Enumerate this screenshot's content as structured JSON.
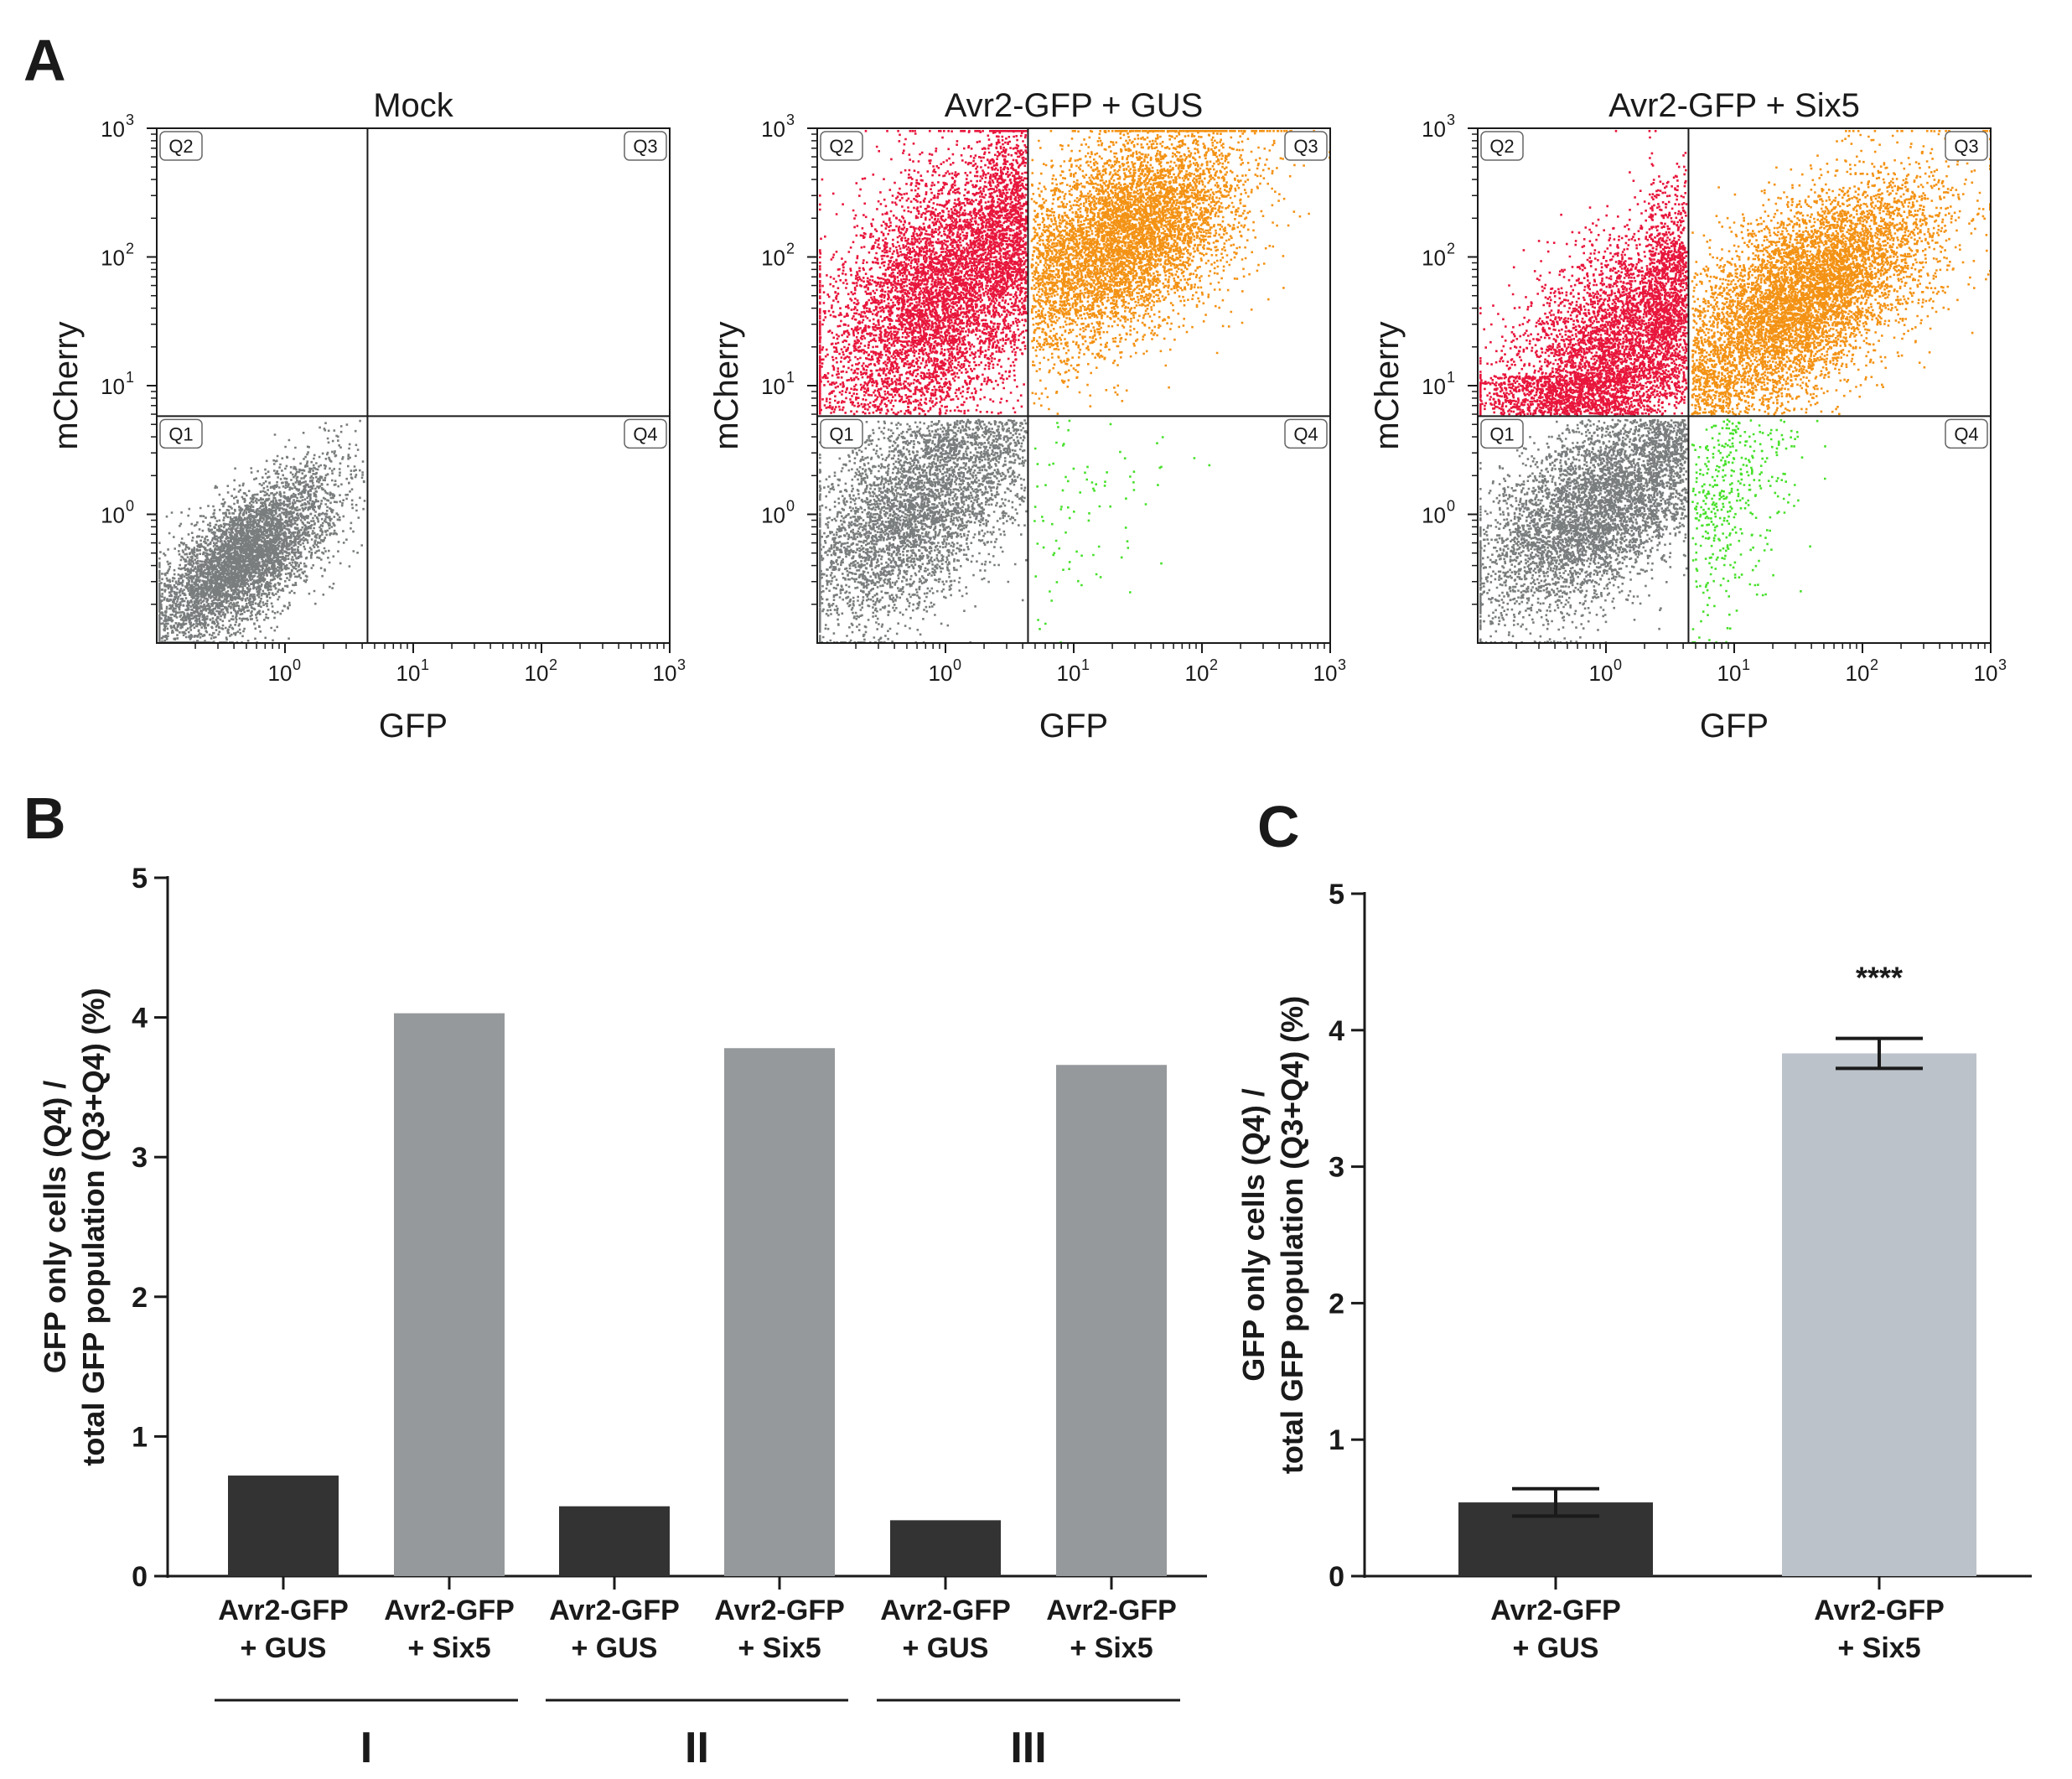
{
  "panels": {
    "a": {
      "letter": "A"
    },
    "b": {
      "letter": "B"
    },
    "c": {
      "letter": "C"
    }
  },
  "colors": {
    "q1_gray": "#7a7d7d",
    "q2_red": "#e8163c",
    "q3_orange": "#f39214",
    "q4_green": "#47e02a",
    "dark_bar": "#333333",
    "gray_bar": "#96999c",
    "light_bar": "#bbc2c9",
    "axis": "#1a1a1a"
  },
  "chart_data": [
    {
      "type": "scatter",
      "title": "Mock",
      "xlabel": "GFP",
      "ylabel": "mCherry",
      "scale": "log",
      "tick_labels": [
        "10",
        "10",
        "10",
        "10"
      ],
      "tick_exponents": [
        "0",
        "1",
        "2",
        "3"
      ],
      "quadrant_labels": [
        "Q1",
        "Q2",
        "Q3",
        "Q4"
      ],
      "gate_x": 4.4,
      "gate_y": 5.8,
      "populations": [
        {
          "quadrant": "Q1",
          "color": "#7a7d7d",
          "n": 5200,
          "cx": 0.45,
          "cy": 0.45,
          "sx": 0.36,
          "sy": 0.34,
          "rho": 0.7
        }
      ]
    },
    {
      "type": "scatter",
      "title": "Avr2-GFP + GUS",
      "xlabel": "GFP",
      "ylabel": "mCherry",
      "scale": "log",
      "tick_labels": [
        "10",
        "10",
        "10",
        "10"
      ],
      "tick_exponents": [
        "0",
        "1",
        "2",
        "3"
      ],
      "quadrant_labels": [
        "Q1",
        "Q2",
        "Q3",
        "Q4"
      ],
      "gate_x": 4.4,
      "gate_y": 5.8,
      "populations": [
        {
          "quadrant": "Q1",
          "color": "#7a7d7d",
          "n": 4200,
          "cx": 0.55,
          "cy": 1.1,
          "sx": 0.45,
          "sy": 0.45,
          "rho": 0.55
        },
        {
          "quadrant": "Q2",
          "color": "#e8163c",
          "n": 6500,
          "cx": 1.0,
          "cy": 60,
          "sx": 0.5,
          "sy": 0.55,
          "rho": 0.5
        },
        {
          "quadrant": "Q3",
          "color": "#f39214",
          "n": 6000,
          "cx": 25,
          "cy": 150,
          "sx": 0.45,
          "sy": 0.42,
          "rho": 0.45
        },
        {
          "quadrant": "Q4",
          "color": "#47e02a",
          "n": 90,
          "cx": 12,
          "cy": 1.2,
          "sx": 0.35,
          "sy": 0.4,
          "rho": 0.3
        }
      ]
    },
    {
      "type": "scatter",
      "title": "Avr2-GFP + Six5",
      "xlabel": "GFP",
      "ylabel": "mCherry",
      "scale": "log",
      "tick_labels": [
        "10",
        "10",
        "10",
        "10"
      ],
      "tick_exponents": [
        "0",
        "1",
        "2",
        "3"
      ],
      "quadrant_labels": [
        "Q1",
        "Q2",
        "Q3",
        "Q4"
      ],
      "gate_x": 4.4,
      "gate_y": 5.8,
      "populations": [
        {
          "quadrant": "Q1",
          "color": "#7a7d7d",
          "n": 4800,
          "cx": 0.8,
          "cy": 1.1,
          "sx": 0.45,
          "sy": 0.4,
          "rho": 0.55
        },
        {
          "quadrant": "Q2",
          "color": "#e8163c",
          "n": 5200,
          "cx": 1.2,
          "cy": 20,
          "sx": 0.48,
          "sy": 0.5,
          "rho": 0.55
        },
        {
          "quadrant": "Q3",
          "color": "#f39214",
          "n": 6800,
          "cx": 35,
          "cy": 50,
          "sx": 0.5,
          "sy": 0.45,
          "rho": 0.6
        },
        {
          "quadrant": "Q4",
          "color": "#47e02a",
          "n": 420,
          "cx": 8,
          "cy": 1.3,
          "sx": 0.3,
          "sy": 0.42,
          "rho": 0.3
        }
      ]
    },
    {
      "type": "bar",
      "ylabel_line1": "GFP only cells (Q4) /",
      "ylabel_line2": "total GFP population (Q3+Q4) (%)",
      "ylim": [
        0,
        5
      ],
      "yticks": [
        "0",
        "1",
        "2",
        "3",
        "4",
        "5"
      ],
      "categories": [
        {
          "line1": "Avr2-GFP",
          "line2": "+ GUS"
        },
        {
          "line1": "Avr2-GFP",
          "line2": "+ Six5"
        },
        {
          "line1": "Avr2-GFP",
          "line2": "+ GUS"
        },
        {
          "line1": "Avr2-GFP",
          "line2": "+ Six5"
        },
        {
          "line1": "Avr2-GFP",
          "line2": "+ GUS"
        },
        {
          "line1": "Avr2-GFP",
          "line2": "+ Six5"
        }
      ],
      "values": [
        0.72,
        4.03,
        0.5,
        3.78,
        0.4,
        3.66
      ],
      "bar_colors": [
        "#333333",
        "#96999c",
        "#333333",
        "#96999c",
        "#333333",
        "#96999c"
      ],
      "groups": [
        "I",
        "II",
        "III"
      ]
    },
    {
      "type": "bar",
      "ylabel_line1": "GFP only cells (Q4) /",
      "ylabel_line2": "total GFP population (Q3+Q4) (%)",
      "ylim": [
        0,
        5
      ],
      "yticks": [
        "0",
        "1",
        "2",
        "3",
        "4",
        "5"
      ],
      "categories": [
        {
          "line1": "Avr2-GFP",
          "line2": "+ GUS"
        },
        {
          "line1": "Avr2-GFP",
          "line2": "+ Six5"
        }
      ],
      "values": [
        0.54,
        3.83
      ],
      "errors": [
        0.1,
        0.11
      ],
      "bar_colors": [
        "#333333",
        "#bbc2c9"
      ],
      "significance": "****"
    }
  ]
}
